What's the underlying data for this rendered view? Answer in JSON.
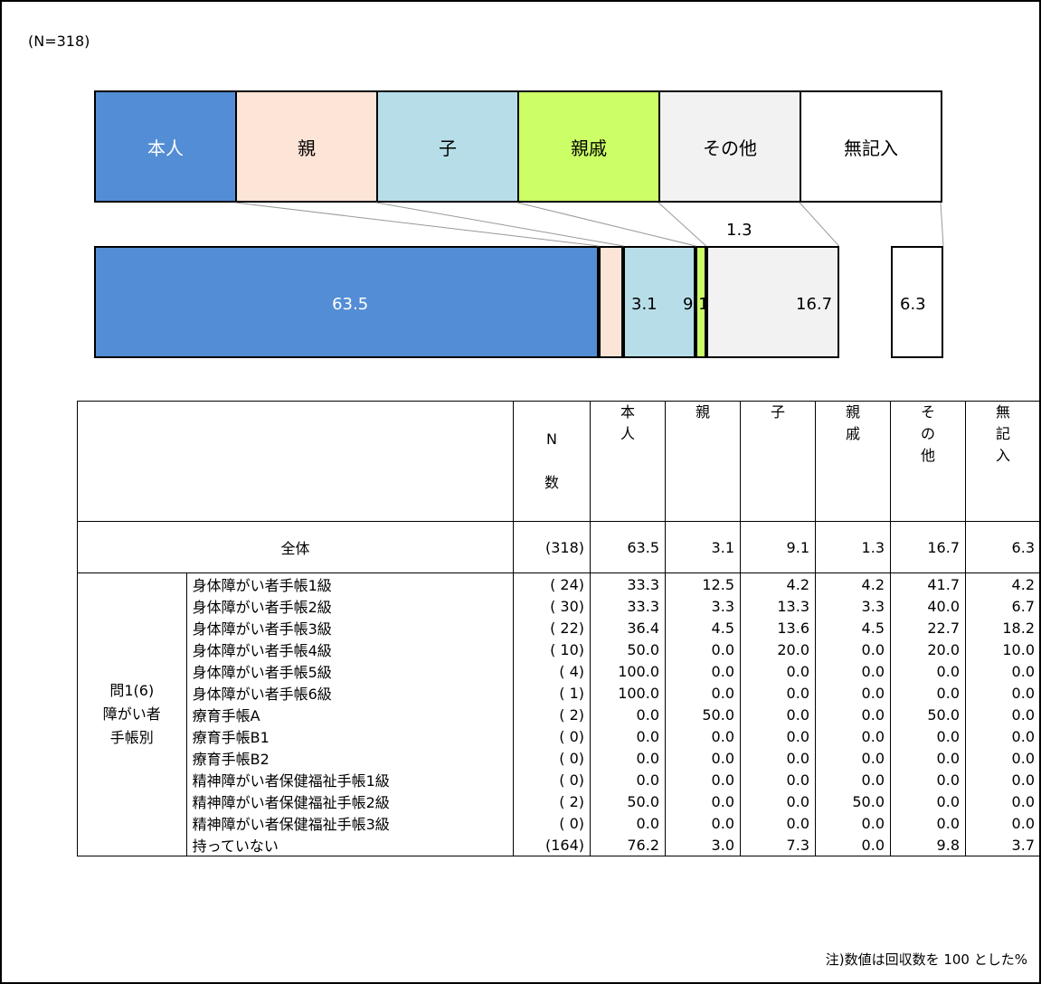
{
  "sample_label": "(N=318)",
  "note": "注)数値は回収数を 100 とした%",
  "chart_data": {
    "type": "bar",
    "categories": [
      "本人",
      "親",
      "子",
      "親戚",
      "その他",
      "無記入"
    ],
    "values": [
      63.5,
      3.1,
      9.1,
      1.3,
      16.7,
      6.3
    ],
    "value_labels": [
      "63.5",
      "3.1",
      "9.1",
      "1.3",
      "16.7",
      "6.3"
    ],
    "colors": [
      "#538DD5",
      "#FCE4D6",
      "#B7DEE8",
      "#CCFF66",
      "#F2F2F2",
      "#FFFFFF"
    ]
  },
  "table": {
    "headers": {
      "n": "N\n\n数",
      "cols": [
        "本\n人",
        "親",
        "子",
        "親\n戚",
        "そ\nの\n他",
        "無\n記\n入"
      ]
    },
    "total": {
      "label": "全体",
      "n": "(318)",
      "values": [
        "63.5",
        "3.1",
        "9.1",
        "1.3",
        "16.7",
        "6.3"
      ]
    },
    "group_label": "問1(6)\n障がい者\n手帳別",
    "rows": [
      {
        "label": "身体障がい者手帳1級",
        "n": "( 24)",
        "values": [
          "33.3",
          "12.5",
          "4.2",
          "4.2",
          "41.7",
          "4.2"
        ]
      },
      {
        "label": "身体障がい者手帳2級",
        "n": "( 30)",
        "values": [
          "33.3",
          "3.3",
          "13.3",
          "3.3",
          "40.0",
          "6.7"
        ]
      },
      {
        "label": "身体障がい者手帳3級",
        "n": "( 22)",
        "values": [
          "36.4",
          "4.5",
          "13.6",
          "4.5",
          "22.7",
          "18.2"
        ]
      },
      {
        "label": "身体障がい者手帳4級",
        "n": "( 10)",
        "values": [
          "50.0",
          "0.0",
          "20.0",
          "0.0",
          "20.0",
          "10.0"
        ]
      },
      {
        "label": "身体障がい者手帳5級",
        "n": "( 4)",
        "values": [
          "100.0",
          "0.0",
          "0.0",
          "0.0",
          "0.0",
          "0.0"
        ]
      },
      {
        "label": "身体障がい者手帳6級",
        "n": "( 1)",
        "values": [
          "100.0",
          "0.0",
          "0.0",
          "0.0",
          "0.0",
          "0.0"
        ]
      },
      {
        "label": "療育手帳A",
        "n": "( 2)",
        "values": [
          "0.0",
          "50.0",
          "0.0",
          "0.0",
          "50.0",
          "0.0"
        ]
      },
      {
        "label": "療育手帳B1",
        "n": "( 0)",
        "values": [
          "0.0",
          "0.0",
          "0.0",
          "0.0",
          "0.0",
          "0.0"
        ]
      },
      {
        "label": "療育手帳B2",
        "n": "( 0)",
        "values": [
          "0.0",
          "0.0",
          "0.0",
          "0.0",
          "0.0",
          "0.0"
        ]
      },
      {
        "label": "精神障がい者保健福祉手帳1級",
        "n": "( 0)",
        "values": [
          "0.0",
          "0.0",
          "0.0",
          "0.0",
          "0.0",
          "0.0"
        ]
      },
      {
        "label": "精神障がい者保健福祉手帳2級",
        "n": "( 2)",
        "values": [
          "50.0",
          "0.0",
          "0.0",
          "50.0",
          "0.0",
          "0.0"
        ]
      },
      {
        "label": "精神障がい者保健福祉手帳3級",
        "n": "( 0)",
        "values": [
          "0.0",
          "0.0",
          "0.0",
          "0.0",
          "0.0",
          "0.0"
        ]
      },
      {
        "label": "持っていない",
        "n": "(164)",
        "values": [
          "76.2",
          "3.0",
          "7.3",
          "0.0",
          "9.8",
          "3.7"
        ]
      }
    ]
  }
}
